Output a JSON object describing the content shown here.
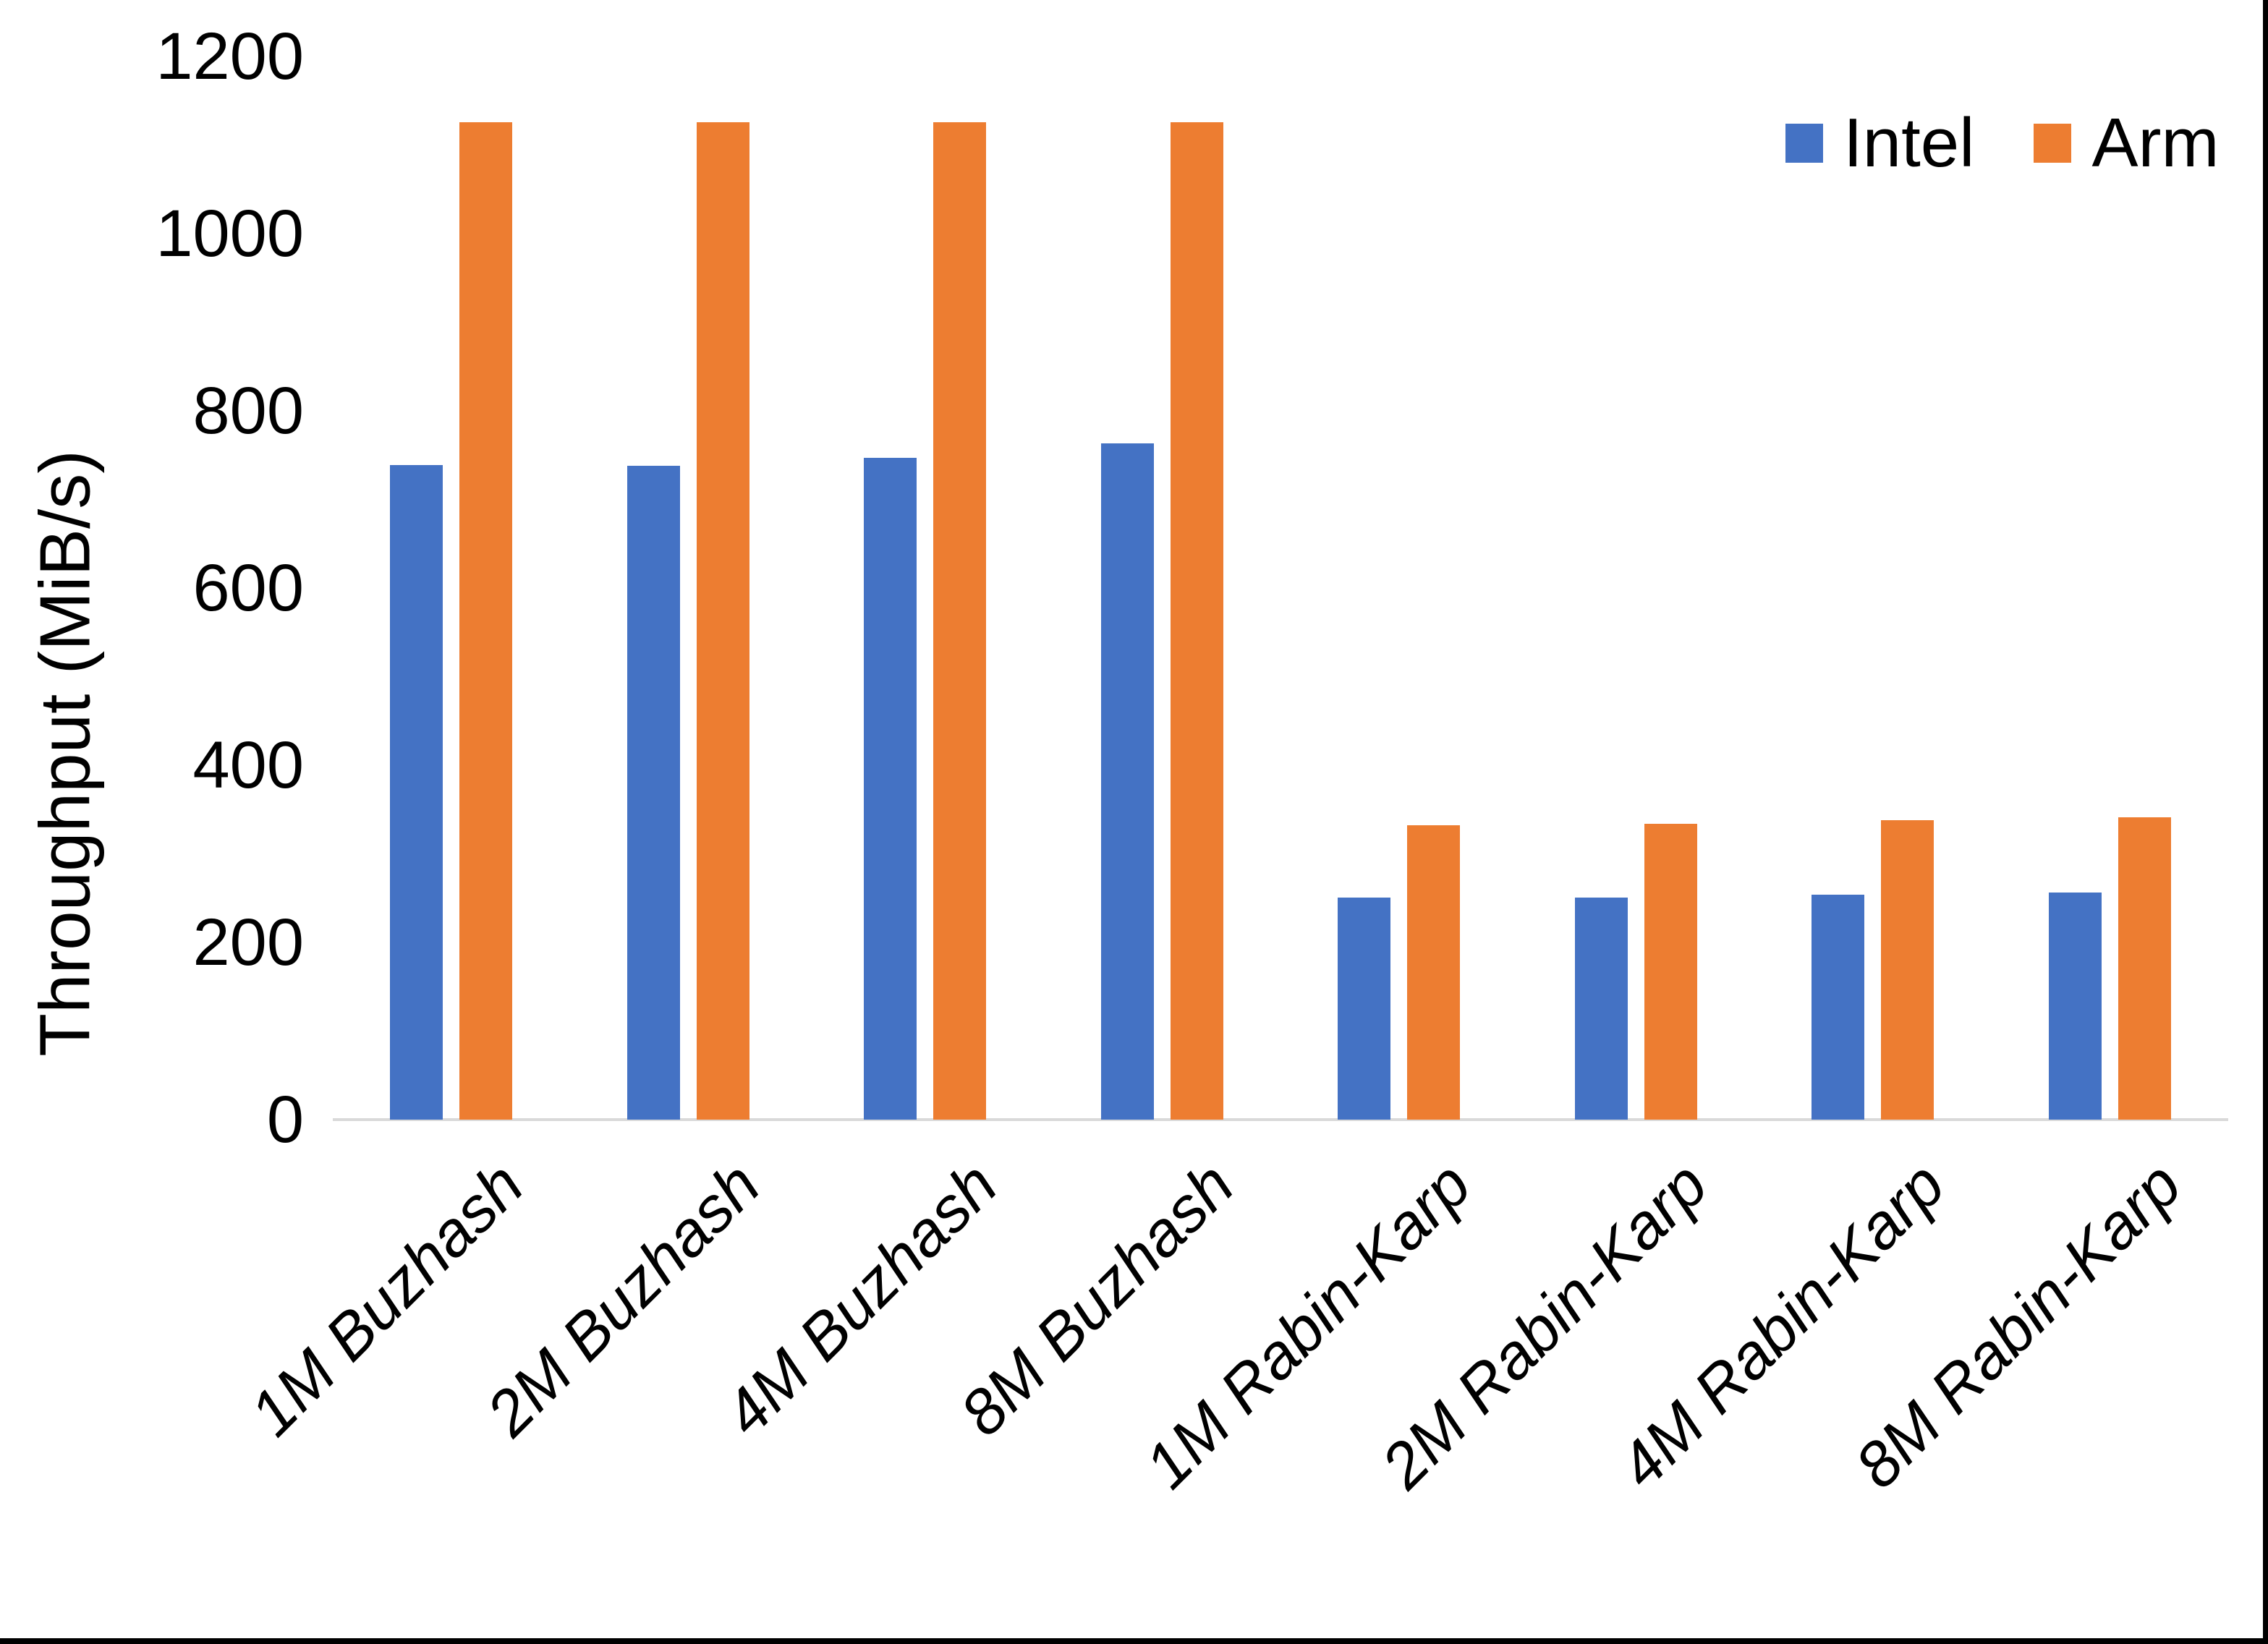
{
  "page": {
    "background": "#FFFFFF",
    "edge_border_color": "#000000"
  },
  "chart_data": {
    "type": "bar",
    "title": "",
    "ylabel": "Throughput (MiB/s)",
    "xlabel": "",
    "ylim": [
      0,
      1200
    ],
    "yticks": [
      0,
      200,
      400,
      600,
      800,
      1000,
      1200
    ],
    "grid": false,
    "axis_line_color": "#D9D9D9",
    "text_color": "#000000",
    "legend_position": "top-right",
    "legend_entries": [
      "Intel",
      "Arm"
    ],
    "categories": [
      "1M Buzhash",
      "2M Buzhash",
      "4M Buzhash",
      "8M Buzhash",
      "1M Rabin-Karp",
      "2M Rabin-Karp",
      "4M Rabin-Karp",
      "8M Rabin-Karp"
    ],
    "series": [
      {
        "name": "Intel",
        "color": "#4472C4",
        "values": [
          739,
          738,
          747,
          763,
          251,
          251,
          254,
          256
        ]
      },
      {
        "name": "Arm",
        "color": "#ED7D31",
        "values": [
          1126,
          1126,
          1126,
          1126,
          332,
          334,
          338,
          341
        ]
      }
    ]
  }
}
